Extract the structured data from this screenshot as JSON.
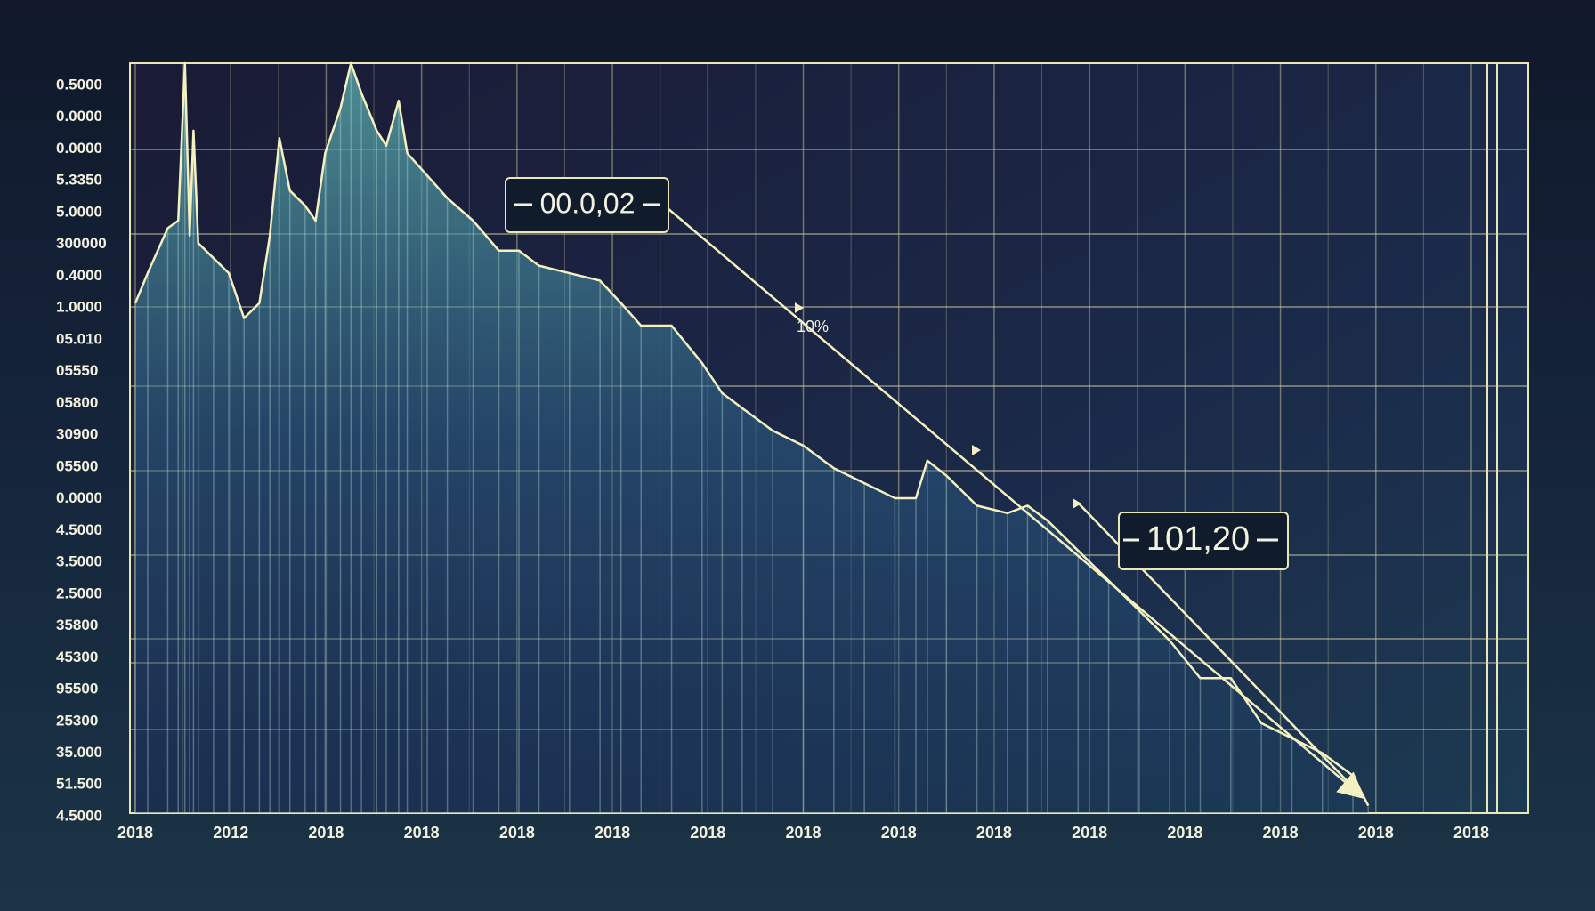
{
  "chart_data": {
    "type": "line",
    "x": [
      0,
      0.13,
      0.34,
      0.45,
      0.52,
      0.57,
      0.61,
      0.66,
      0.82,
      0.98,
      1.14,
      1.3,
      1.41,
      1.51,
      1.62,
      1.78,
      1.89,
      1.99,
      2.15,
      2.26,
      2.37,
      2.53,
      2.63,
      2.76,
      2.85,
      3.06,
      3.27,
      3.54,
      3.81,
      4.02,
      4.23,
      4.55,
      4.87,
      5.09,
      5.3,
      5.62,
      5.94,
      6.15,
      6.36,
      6.68,
      7.0,
      7.32,
      7.64,
      7.96,
      8.18,
      8.3,
      8.5,
      8.82,
      9.14,
      9.35,
      9.56,
      9.88,
      10.2,
      10.52,
      10.84,
      11.16,
      11.48,
      11.8,
      12.12,
      12.44,
      12.76,
      12.92
    ],
    "series": [
      {
        "color": "#f4f0c0",
        "values": [
          68,
          72,
          78,
          79,
          100,
          77,
          91,
          76,
          74,
          72,
          66,
          68,
          77,
          90,
          83,
          81,
          79,
          88,
          94,
          100,
          96,
          91,
          89,
          95,
          88,
          85,
          82,
          79,
          75,
          75,
          73,
          72,
          71,
          68,
          65,
          65,
          60,
          56,
          54,
          51,
          49,
          46,
          44,
          42,
          42,
          47,
          45,
          41,
          40,
          41,
          39,
          35,
          31,
          27,
          23,
          18,
          18,
          12,
          10,
          8,
          5,
          1
        ]
      }
    ],
    "xlim": [
      0,
      14
    ],
    "xticks": [
      {
        "value": 0,
        "label": "2018"
      },
      {
        "value": 1,
        "label": "2012"
      },
      {
        "value": 2,
        "label": "2018"
      },
      {
        "value": 3,
        "label": "2018"
      },
      {
        "value": 4,
        "label": "2018"
      },
      {
        "value": 5,
        "label": "2018"
      },
      {
        "value": 6,
        "label": "2018"
      },
      {
        "value": 7,
        "label": "2018"
      },
      {
        "value": 8,
        "label": "2018"
      },
      {
        "value": 9,
        "label": "2018"
      },
      {
        "value": 10,
        "label": "2018"
      },
      {
        "value": 11,
        "label": "2018"
      },
      {
        "value": 12,
        "label": "2018"
      },
      {
        "value": 13,
        "label": "2018"
      },
      {
        "value": 14,
        "label": "2018"
      }
    ],
    "ylim": [
      0,
      100
    ],
    "y_axis_labels": [
      "0.5000",
      "0.0000",
      "0.0000",
      "5.3350",
      "5.0000",
      "300000",
      "0.4000",
      "1.0000",
      "05.010",
      "05550",
      "05800",
      "30900",
      "05500",
      "0.0000",
      "4.5000",
      "3.5000",
      "2.5000",
      "35800",
      "45300",
      "95500",
      "25300",
      "35.000",
      "51.500",
      "4.5000"
    ],
    "annotations": [
      "00.0,02",
      "10%",
      "101,20"
    ]
  }
}
